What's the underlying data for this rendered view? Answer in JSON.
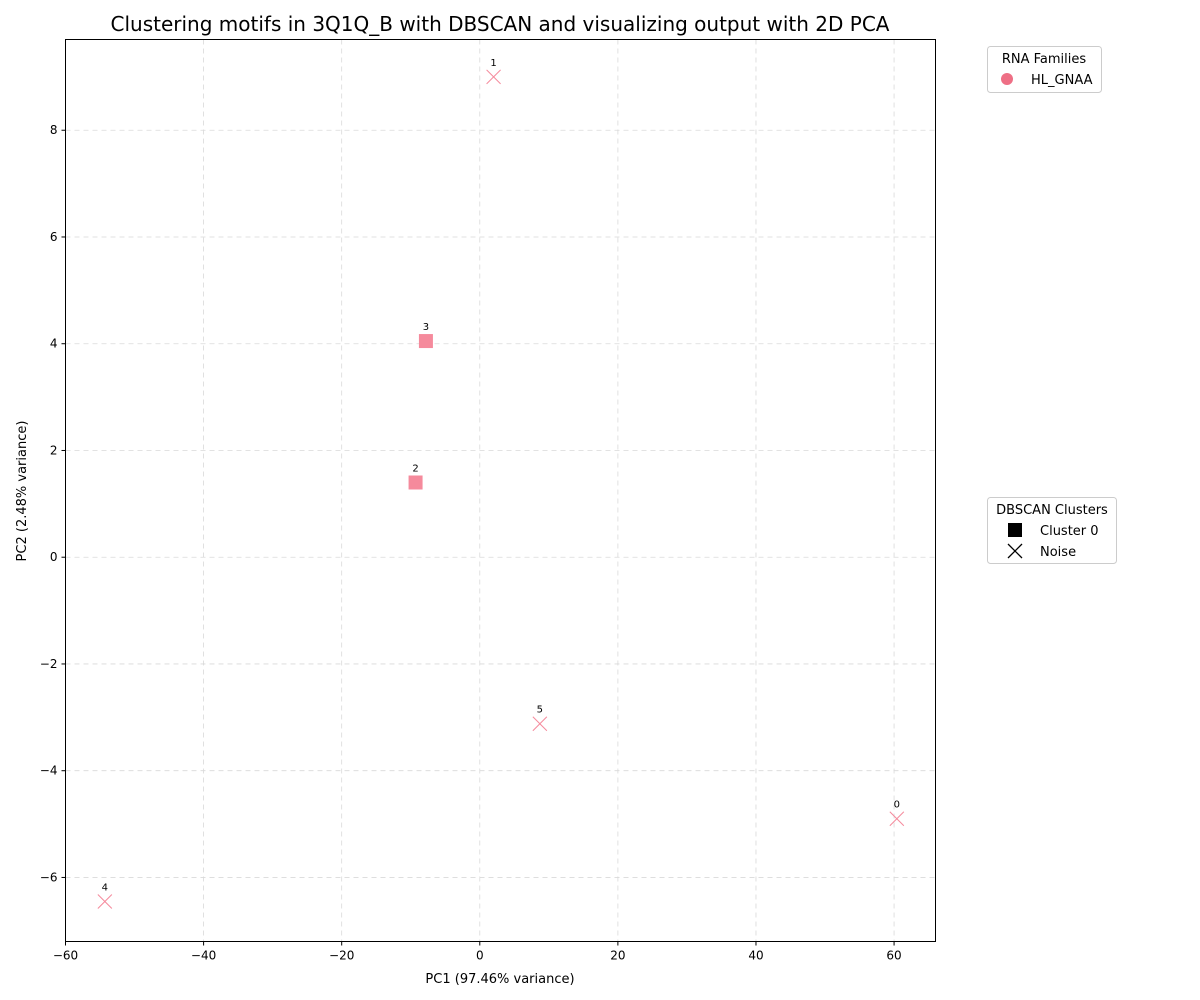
{
  "colors": {
    "hl_gnaa": "#ee6f85",
    "cluster_marker": "#f58a9c"
  },
  "chart_data": {
    "type": "scatter",
    "title": "Clustering motifs in 3Q1Q_B with DBSCAN and visualizing output with 2D PCA",
    "xlabel": "PC1 (97.46% variance)",
    "ylabel": "PC2 (2.48% variance)",
    "xlim": [
      -60,
      66
    ],
    "ylim": [
      -7.2,
      9.7
    ],
    "xticks": [
      -60,
      -40,
      -20,
      0,
      20,
      40,
      60
    ],
    "yticks": [
      -6,
      -4,
      -2,
      0,
      2,
      4,
      6,
      8
    ],
    "grid": true,
    "points": [
      {
        "label": "0",
        "x": 60.4,
        "y": -4.9,
        "cluster": "Noise",
        "family": "HL_GNAA"
      },
      {
        "label": "1",
        "x": 2.0,
        "y": 9.0,
        "cluster": "Noise",
        "family": "HL_GNAA"
      },
      {
        "label": "2",
        "x": -9.3,
        "y": 1.4,
        "cluster": "Cluster 0",
        "family": "HL_GNAA"
      },
      {
        "label": "3",
        "x": -7.8,
        "y": 4.05,
        "cluster": "Cluster 0",
        "family": "HL_GNAA"
      },
      {
        "label": "4",
        "x": -54.3,
        "y": -6.45,
        "cluster": "Noise",
        "family": "HL_GNAA"
      },
      {
        "label": "5",
        "x": 8.7,
        "y": -3.12,
        "cluster": "Noise",
        "family": "HL_GNAA"
      }
    ],
    "legend_families": {
      "title": "RNA Families",
      "placement": "outside-top-right",
      "entries": [
        {
          "name": "HL_GNAA",
          "marker": "circle"
        }
      ]
    },
    "legend_clusters": {
      "title": "DBSCAN Clusters",
      "placement": "outside-middle-right",
      "entries": [
        {
          "name": "Cluster 0",
          "marker": "square"
        },
        {
          "name": "Noise",
          "marker": "x"
        }
      ]
    }
  }
}
